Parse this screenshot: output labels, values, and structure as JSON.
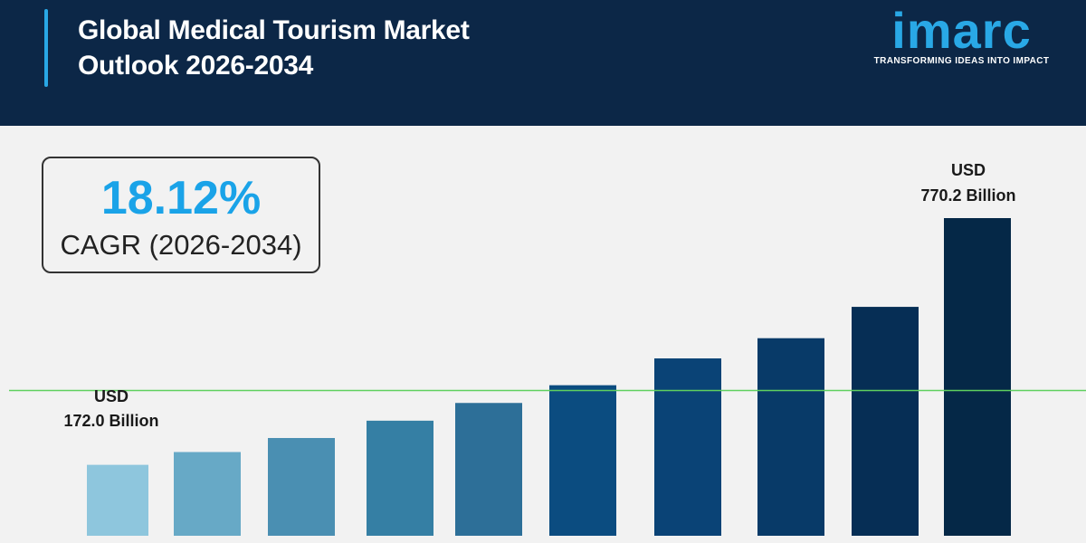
{
  "header": {
    "title_line1": "Global Medical Tourism Market",
    "title_line2": "Outlook 2026-2034"
  },
  "logo": {
    "wordmark": "imarc",
    "tagline": "TRANSFORMING IDEAS INTO IMPACT"
  },
  "cagr": {
    "value": "18.12%",
    "label": "CAGR (2026-2034)"
  },
  "colors": {
    "header_bg": "#0c2747",
    "accent": "#29a8e6",
    "guide_line": "#5fd05f"
  },
  "chart_data": {
    "type": "bar",
    "categories": [
      "",
      "",
      "",
      "",
      "",
      "",
      "",
      "",
      "",
      ""
    ],
    "values": [
      172.0,
      203,
      237,
      279,
      322,
      365,
      430,
      479,
      555,
      770.2
    ],
    "colors": [
      "#8ec6dd",
      "#67a9c6",
      "#4a8fb2",
      "#357fa4",
      "#2d6f98",
      "#0b4c80",
      "#0a4376",
      "#083a68",
      "#062e55",
      "#052847"
    ],
    "first_label": {
      "line1": "USD",
      "line2": "172.0 Billion"
    },
    "last_label": {
      "line1": "USD",
      "line2": "770.2 Billion"
    },
    "ylim": [
      0,
      850
    ],
    "xlabel": "",
    "ylabel": "",
    "grid": false
  }
}
